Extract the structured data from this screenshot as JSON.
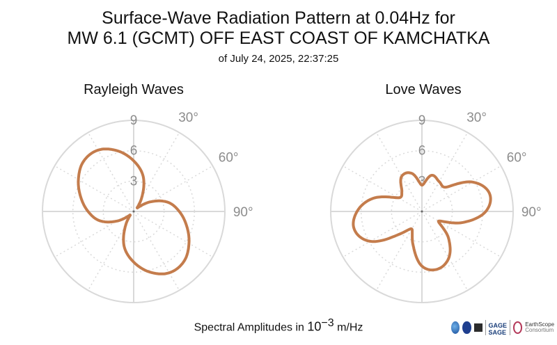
{
  "title_line1": "Surface-Wave Radiation Pattern at 0.04Hz for",
  "title_line2": "MW 6.1 (GCMT) OFF EAST COAST OF KAMCHATKA",
  "title_line3": "of July 24, 2025, 22:37:25",
  "footer_prefix": "Spectral Amplitudes in ",
  "footer_base": "10",
  "footer_exp": "−3",
  "footer_suffix": " m/Hz",
  "logos": {
    "gage": "GAGE",
    "sage": "SAGE",
    "earthscope": "EarthScope",
    "consortium": "Consortium"
  },
  "colors": {
    "pattern": "#c47c4c",
    "grid": "#d9d9d9",
    "tick_text": "#8c8c8c"
  },
  "chart_data": [
    {
      "type": "polar-line",
      "title": "Rayleigh Waves",
      "radial_ticks": [
        3,
        6,
        9
      ],
      "radial_tick_labels": [
        "3",
        "6",
        "9"
      ],
      "angle_tick_labels": [
        "30°",
        "60°",
        "90°"
      ],
      "rmax": 9,
      "theta_direction": "clockwise from north",
      "series": [
        {
          "theta_deg": [
            0,
            15,
            30,
            45,
            60,
            75,
            90,
            105,
            120,
            135,
            150,
            165,
            180,
            195,
            210,
            225,
            240,
            255,
            270,
            285,
            300,
            315,
            330,
            345
          ],
          "r": [
            5.0,
            3.6,
            1.6,
            0.5,
            1.9,
            3.5,
            4.5,
            5.4,
            6.3,
            7.0,
            7.0,
            6.2,
            5.0,
            3.6,
            1.6,
            0.5,
            1.9,
            3.5,
            4.5,
            5.4,
            6.3,
            7.0,
            7.0,
            6.2
          ]
        }
      ]
    },
    {
      "type": "polar-line",
      "title": "Love Waves",
      "radial_ticks": [
        3,
        6,
        9
      ],
      "radial_tick_labels": [
        "3",
        "6",
        "9"
      ],
      "angle_tick_labels": [
        "30°",
        "60°",
        "90°"
      ],
      "rmax": 9,
      "theta_direction": "clockwise from north",
      "series": [
        {
          "theta_deg": [
            0,
            15,
            30,
            45,
            60,
            75,
            90,
            105,
            120,
            135,
            150,
            165,
            180,
            195,
            210,
            225,
            240,
            255,
            270,
            285,
            300,
            315,
            330,
            345
          ],
          "r": [
            2.6,
            3.7,
            3.4,
            3.4,
            5.8,
            6.9,
            6.3,
            4.2,
            1.9,
            3.7,
            5.3,
            5.9,
            5.4,
            3.4,
            2.0,
            3.2,
            5.9,
            6.9,
            6.4,
            5.0,
            2.7,
            2.8,
            4.0,
            3.9
          ]
        }
      ]
    }
  ]
}
